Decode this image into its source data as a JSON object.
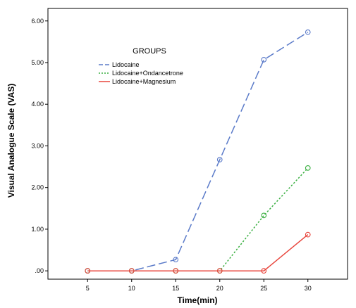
{
  "chart_data": {
    "type": "line",
    "xlabel": "Time(min)",
    "ylabel": "Visual Analogue Scale (VAS)",
    "x": [
      5,
      10,
      15,
      20,
      25,
      30
    ],
    "x_tick_labels": [
      "5",
      "10",
      "15",
      "20",
      "25",
      "30"
    ],
    "xlim": [
      0.5,
      34.5
    ],
    "ylim": [
      -0.2,
      6.3
    ],
    "y_ticks": [
      0,
      1,
      2,
      3,
      4,
      5,
      6
    ],
    "y_tick_labels": [
      ".00",
      "1.00",
      "2.00",
      "3.00",
      "4.00",
      "5.00",
      "6.00"
    ],
    "grid": false,
    "legend": {
      "title": "GROUPS",
      "placement": "top-left"
    },
    "series": [
      {
        "name": "Lidocaine",
        "values": [
          0,
          0,
          0.27,
          2.67,
          5.07,
          5.73
        ],
        "color": "#5b7bc9",
        "dash": "long-dash"
      },
      {
        "name": "Lidocaine+Ondancetrone",
        "values": [
          0,
          0,
          0,
          0,
          1.33,
          2.47
        ],
        "color": "#3cb043",
        "dash": "dotted"
      },
      {
        "name": "Lidocaine+Magnesium",
        "values": [
          0,
          0,
          0,
          0,
          0,
          0.87
        ],
        "color": "#e8453c",
        "dash": "solid"
      }
    ]
  }
}
